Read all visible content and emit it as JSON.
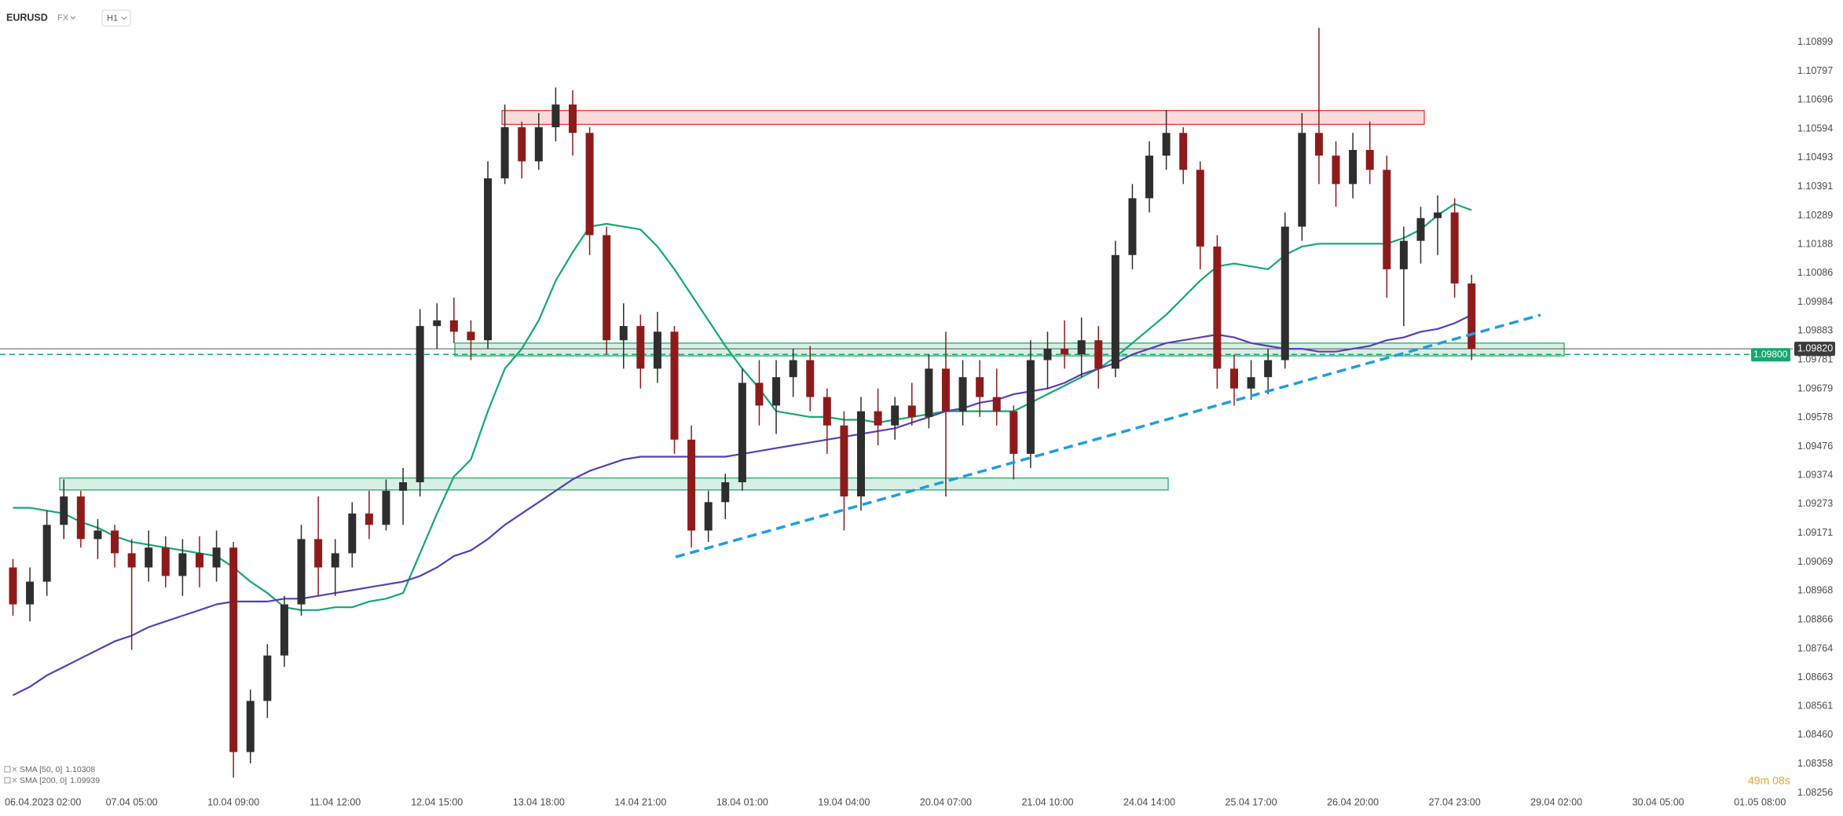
{
  "header": {
    "symbol": "EURUSD",
    "market": "FX",
    "interval": "H1"
  },
  "footer": {
    "countdown": "49m 08s"
  },
  "chart_data": {
    "type": "candlestick",
    "categories": [
      null,
      "06.04.2023 02:00",
      null,
      null,
      null,
      null,
      null,
      "07.04 05:00",
      null,
      null,
      null,
      null,
      null,
      "10.04 09:00",
      null,
      null,
      null,
      null,
      null,
      "11.04 12:00",
      null,
      null,
      null,
      null,
      null,
      "12.04 15:00",
      null,
      null,
      null,
      null,
      null,
      "13.04 18:00",
      null,
      null,
      null,
      null,
      null,
      "14.04 21:00",
      null,
      null,
      null,
      null,
      null,
      "18.04 01:00",
      null,
      null,
      null,
      null,
      null,
      "19.04 04:00",
      null,
      null,
      null,
      null,
      null,
      "20.04 07:00",
      null,
      null,
      null,
      null,
      null,
      "21.04 10:00",
      null,
      null,
      null,
      null,
      null,
      "24.04 14:00",
      null,
      null,
      null,
      null,
      null,
      "25.04 17:00",
      null,
      null,
      null,
      null,
      null,
      "26.04 20:00",
      null,
      null,
      null,
      null,
      null,
      "27.04 23:00",
      null,
      null,
      null,
      null,
      null,
      "29.04 02:00",
      null,
      null,
      null,
      null,
      null,
      "30.04 05:00",
      null,
      null,
      null,
      null,
      null,
      "01.05 08:00"
    ],
    "open": [
      1.0905,
      1.0892,
      1.09,
      1.092,
      1.093,
      1.0915,
      1.0918,
      1.091,
      1.0905,
      1.0912,
      1.0902,
      1.091,
      1.0905,
      1.0912,
      1.084,
      1.0858,
      1.0874,
      1.0892,
      1.0915,
      1.0905,
      1.091,
      1.0924,
      1.092,
      1.0932,
      1.0935,
      1.099,
      1.0992,
      1.0988,
      1.0985,
      1.1042,
      1.106,
      1.1048,
      1.106,
      1.1068,
      1.1058,
      1.1022,
      1.0985,
      1.099,
      1.0975,
      1.0988,
      1.095,
      1.0918,
      1.0928,
      1.0935,
      1.097,
      1.0962,
      1.0972,
      1.0978,
      1.0965,
      1.0955,
      1.093,
      1.096,
      1.0955,
      1.0962,
      1.0958,
      1.0975,
      1.096,
      1.0972,
      1.0965,
      1.096,
      1.0945,
      1.0978,
      1.0982,
      1.098,
      1.0985,
      1.0975,
      1.1015,
      1.1035,
      1.105,
      1.1058,
      1.1045,
      1.1018,
      1.0975,
      1.0968,
      1.0972,
      1.0978,
      1.1025,
      1.1058,
      1.105,
      1.104,
      1.1052,
      1.1045,
      1.101,
      1.102,
      1.1028,
      1.103,
      1.1005,
      null,
      null,
      null,
      null,
      null,
      null,
      null,
      null,
      null,
      null,
      null,
      null,
      null,
      null,
      null,
      null,
      null
    ],
    "high": [
      1.0908,
      1.0905,
      1.0925,
      1.0936,
      1.0932,
      1.0922,
      1.092,
      1.0915,
      1.0918,
      1.0916,
      1.0915,
      1.0916,
      1.0918,
      1.0914,
      1.0862,
      1.0878,
      1.0895,
      1.092,
      1.093,
      1.0915,
      1.0928,
      1.0932,
      1.0936,
      1.094,
      1.0996,
      1.0998,
      1.1,
      1.0992,
      1.1048,
      1.1068,
      1.1062,
      1.1065,
      1.1074,
      1.1073,
      1.106,
      1.1025,
      1.0998,
      1.0994,
      1.0995,
      1.099,
      1.0955,
      1.0932,
      1.0938,
      1.0975,
      1.0978,
      1.0978,
      1.0982,
      1.0983,
      1.0968,
      1.096,
      1.0965,
      1.0968,
      1.0965,
      1.097,
      1.098,
      1.0988,
      1.0978,
      1.0978,
      1.0975,
      1.0962,
      1.0985,
      1.0988,
      1.0992,
      1.0993,
      1.099,
      1.102,
      1.104,
      1.1055,
      1.1066,
      1.106,
      1.1048,
      1.1022,
      1.098,
      1.0978,
      1.0982,
      1.103,
      1.1065,
      1.1095,
      1.1055,
      1.1058,
      1.1062,
      1.105,
      1.1025,
      1.1032,
      1.1036,
      1.1035,
      1.1008,
      null,
      null,
      null,
      null,
      null,
      null,
      null,
      null,
      null,
      null,
      null,
      null,
      null,
      null,
      null,
      null,
      null
    ],
    "low": [
      1.0888,
      1.0886,
      1.0895,
      1.0915,
      1.0912,
      1.0908,
      1.0905,
      1.0876,
      1.09,
      1.0898,
      1.0895,
      1.0898,
      1.09,
      1.0831,
      1.0836,
      1.0852,
      1.087,
      1.0888,
      1.0895,
      1.0895,
      1.0905,
      1.0915,
      1.0918,
      1.092,
      1.093,
      1.0982,
      1.0984,
      1.0978,
      1.0982,
      1.104,
      1.1042,
      1.1045,
      1.1055,
      1.105,
      1.1015,
      1.098,
      1.0975,
      1.0968,
      1.097,
      1.0945,
      1.0912,
      1.0914,
      1.0922,
      1.0932,
      1.0955,
      1.0952,
      1.0965,
      1.096,
      1.0945,
      1.0918,
      1.0925,
      1.0948,
      1.095,
      1.0955,
      1.0954,
      1.093,
      1.0955,
      1.0958,
      1.0955,
      1.0936,
      1.094,
      1.0968,
      1.0975,
      1.0972,
      1.0968,
      1.0972,
      1.101,
      1.103,
      1.1045,
      1.104,
      1.101,
      1.0968,
      1.0962,
      1.0964,
      1.0966,
      1.0975,
      1.102,
      1.104,
      1.1032,
      1.1035,
      1.104,
      1.1,
      1.099,
      1.1012,
      1.1015,
      1.1,
      1.0978,
      null,
      null,
      null,
      null,
      null,
      null,
      null,
      null,
      null,
      null,
      null,
      null,
      null,
      null,
      null,
      null,
      null
    ],
    "close": [
      1.0892,
      1.09,
      1.092,
      1.093,
      1.0915,
      1.0918,
      1.091,
      1.0905,
      1.0912,
      1.0902,
      1.091,
      1.0905,
      1.0912,
      1.084,
      1.0858,
      1.0874,
      1.0892,
      1.0915,
      1.0905,
      1.091,
      1.0924,
      1.092,
      1.0932,
      1.0935,
      1.099,
      1.0992,
      1.0988,
      1.0985,
      1.1042,
      1.106,
      1.1048,
      1.106,
      1.1068,
      1.1058,
      1.1022,
      1.0985,
      1.099,
      1.0975,
      1.0988,
      1.095,
      1.0918,
      1.0928,
      1.0935,
      1.097,
      1.0962,
      1.0972,
      1.0978,
      1.0965,
      1.0955,
      1.093,
      1.096,
      1.0955,
      1.0962,
      1.0958,
      1.0975,
      1.096,
      1.0972,
      1.0965,
      1.096,
      1.0945,
      1.0978,
      1.0982,
      1.098,
      1.0985,
      1.0975,
      1.1015,
      1.1035,
      1.105,
      1.1058,
      1.1045,
      1.1018,
      1.0975,
      1.0968,
      1.0972,
      1.0978,
      1.1025,
      1.1058,
      1.105,
      1.104,
      1.1052,
      1.1045,
      1.101,
      1.102,
      1.1028,
      1.103,
      1.1005,
      1.0982,
      null,
      null,
      null,
      null,
      null,
      null,
      null,
      null,
      null,
      null,
      null,
      null,
      null,
      null,
      null,
      null,
      null
    ],
    "up_color": "#2e2e2e",
    "down_color": "#8e1b1b",
    "series": [
      {
        "name": "SMA [50, 0]",
        "color": "#14a870",
        "values": [
          1.0926,
          1.0926,
          1.0925,
          1.0924,
          1.0921,
          1.0919,
          1.0916,
          1.0914,
          1.0913,
          1.0912,
          1.0911,
          1.091,
          1.0909,
          1.0905,
          1.09,
          1.0896,
          1.0891,
          1.089,
          1.089,
          1.0891,
          1.0891,
          1.0893,
          1.0894,
          1.0896,
          1.091,
          1.0924,
          1.0937,
          1.0943,
          1.096,
          1.0975,
          1.0982,
          1.0992,
          1.1006,
          1.1016,
          1.1025,
          1.1026,
          1.1025,
          1.1024,
          1.1018,
          1.101,
          1.1001,
          1.0992,
          1.0983,
          1.0975,
          1.0968,
          1.096,
          1.0959,
          1.0958,
          1.0958,
          1.0957,
          1.0957,
          1.0956,
          1.0957,
          1.0958,
          1.0959,
          1.096,
          1.096,
          1.096,
          1.096,
          1.096,
          1.0963,
          1.0966,
          1.0969,
          1.0972,
          1.0975,
          1.0979,
          1.0984,
          1.0989,
          1.0994,
          1.1,
          1.1006,
          1.1011,
          1.1012,
          1.1011,
          1.101,
          1.1015,
          1.1018,
          1.1019,
          1.1019,
          1.1019,
          1.1019,
          1.1019,
          1.1021,
          1.1024,
          1.1029,
          1.1033,
          1.10308,
          null,
          null,
          null,
          null,
          null,
          null,
          null,
          null,
          null,
          null,
          null,
          null,
          null,
          null,
          null,
          null,
          null
        ]
      },
      {
        "name": "SMA [200, 0]",
        "color": "#5a3db8",
        "values": [
          1.086,
          1.0863,
          1.0867,
          1.087,
          1.0873,
          1.0876,
          1.0879,
          1.0881,
          1.0884,
          1.0886,
          1.0888,
          1.089,
          1.0892,
          1.0893,
          1.0893,
          1.0893,
          1.0894,
          1.0894,
          1.0895,
          1.0896,
          1.0897,
          1.0898,
          1.0899,
          1.09,
          1.0902,
          1.0905,
          1.0909,
          1.0911,
          1.0915,
          1.092,
          1.0924,
          1.0928,
          1.0932,
          1.0936,
          1.0939,
          1.0941,
          1.0943,
          1.0944,
          1.0944,
          1.0944,
          1.0944,
          1.0944,
          1.0944,
          1.0945,
          1.0946,
          1.0947,
          1.0948,
          1.0949,
          1.095,
          1.0951,
          1.0952,
          1.0953,
          1.0954,
          1.0956,
          1.0958,
          1.096,
          1.0961,
          1.0963,
          1.0964,
          1.0966,
          1.0967,
          1.0968,
          1.097,
          1.0973,
          1.0975,
          1.0977,
          1.098,
          1.0982,
          1.0984,
          1.0985,
          1.0986,
          1.0987,
          1.0986,
          1.0984,
          1.0983,
          1.0982,
          1.0982,
          1.0981,
          1.0981,
          1.0982,
          1.0983,
          1.0985,
          1.0986,
          1.0988,
          1.0989,
          1.0991,
          1.09939,
          null,
          null,
          null,
          null,
          null,
          null,
          null,
          null,
          null,
          null,
          null,
          null,
          null,
          null,
          null,
          null,
          null
        ]
      }
    ],
    "zones": [
      {
        "low": 1.1061,
        "high": 1.10659,
        "color": "#e53935"
      },
      {
        "low": 1.09795,
        "high": 1.0984,
        "color": "#1fae6a"
      },
      {
        "low": 1.09323,
        "high": 1.09365,
        "color": "#1fae6a"
      }
    ],
    "trendline": {
      "start": 1.09087,
      "end": 1.09939,
      "color": "#1e9ee0"
    },
    "price_lines": [
      {
        "value": 1.0982,
        "label": "1.09820",
        "color": "#3b3b3b"
      },
      {
        "value": 1.098,
        "label": "1.09800",
        "color": "#14a870"
      }
    ],
    "ylim": [
      1.08244,
      1.11048
    ],
    "yticks": [
      1.10899,
      1.10797,
      1.10696,
      1.10594,
      1.10493,
      1.10391,
      1.10289,
      1.10188,
      1.10086,
      1.09984,
      1.09883,
      1.09781,
      1.09679,
      1.09578,
      1.09476,
      1.09374,
      1.09273,
      1.09171,
      1.09069,
      1.08968,
      1.08866,
      1.08764,
      1.08663,
      1.08561,
      {
        "value": 1.0846,
        "label": "1.08460"
      },
      1.08358,
      1.08256
    ],
    "grid": false
  }
}
